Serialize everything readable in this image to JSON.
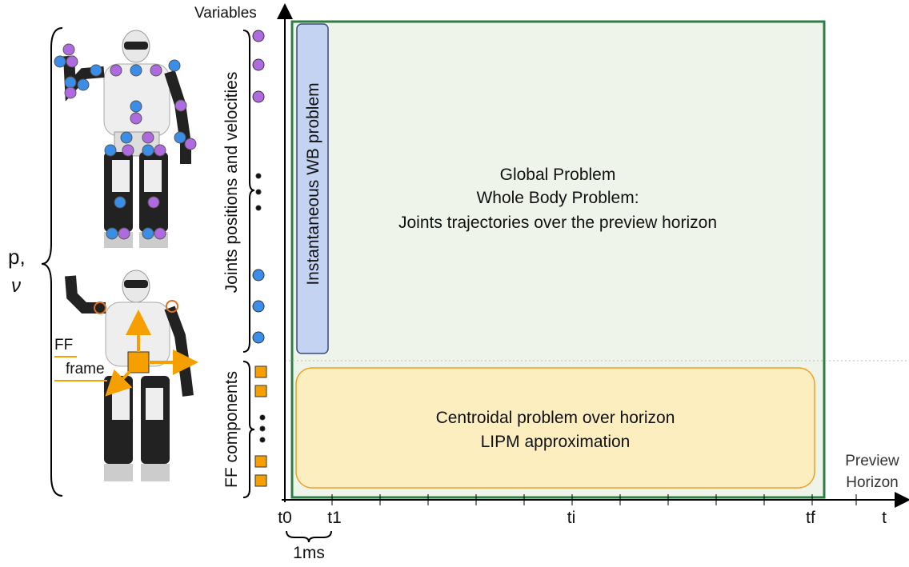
{
  "axis": {
    "y_label": "Variables",
    "x_label": "t",
    "preview": [
      "Preview",
      "Horizon"
    ]
  },
  "state": [
    "p,",
    "ν"
  ],
  "ff_frame": [
    "FF",
    "frame"
  ],
  "groups": {
    "joints": "Joints positions and velocities",
    "ff": "FF components"
  },
  "boxes": {
    "instantaneous": "Instantaneous WB problem",
    "global": [
      "Global Problem",
      "Whole Body Problem:",
      "Joints trajectories over the preview horizon"
    ],
    "centroidal": [
      "Centroidal problem over horizon",
      "LIPM approximation"
    ]
  },
  "time_labels": [
    "t0",
    "t1",
    "ti",
    "tf"
  ],
  "step": "1ms"
}
